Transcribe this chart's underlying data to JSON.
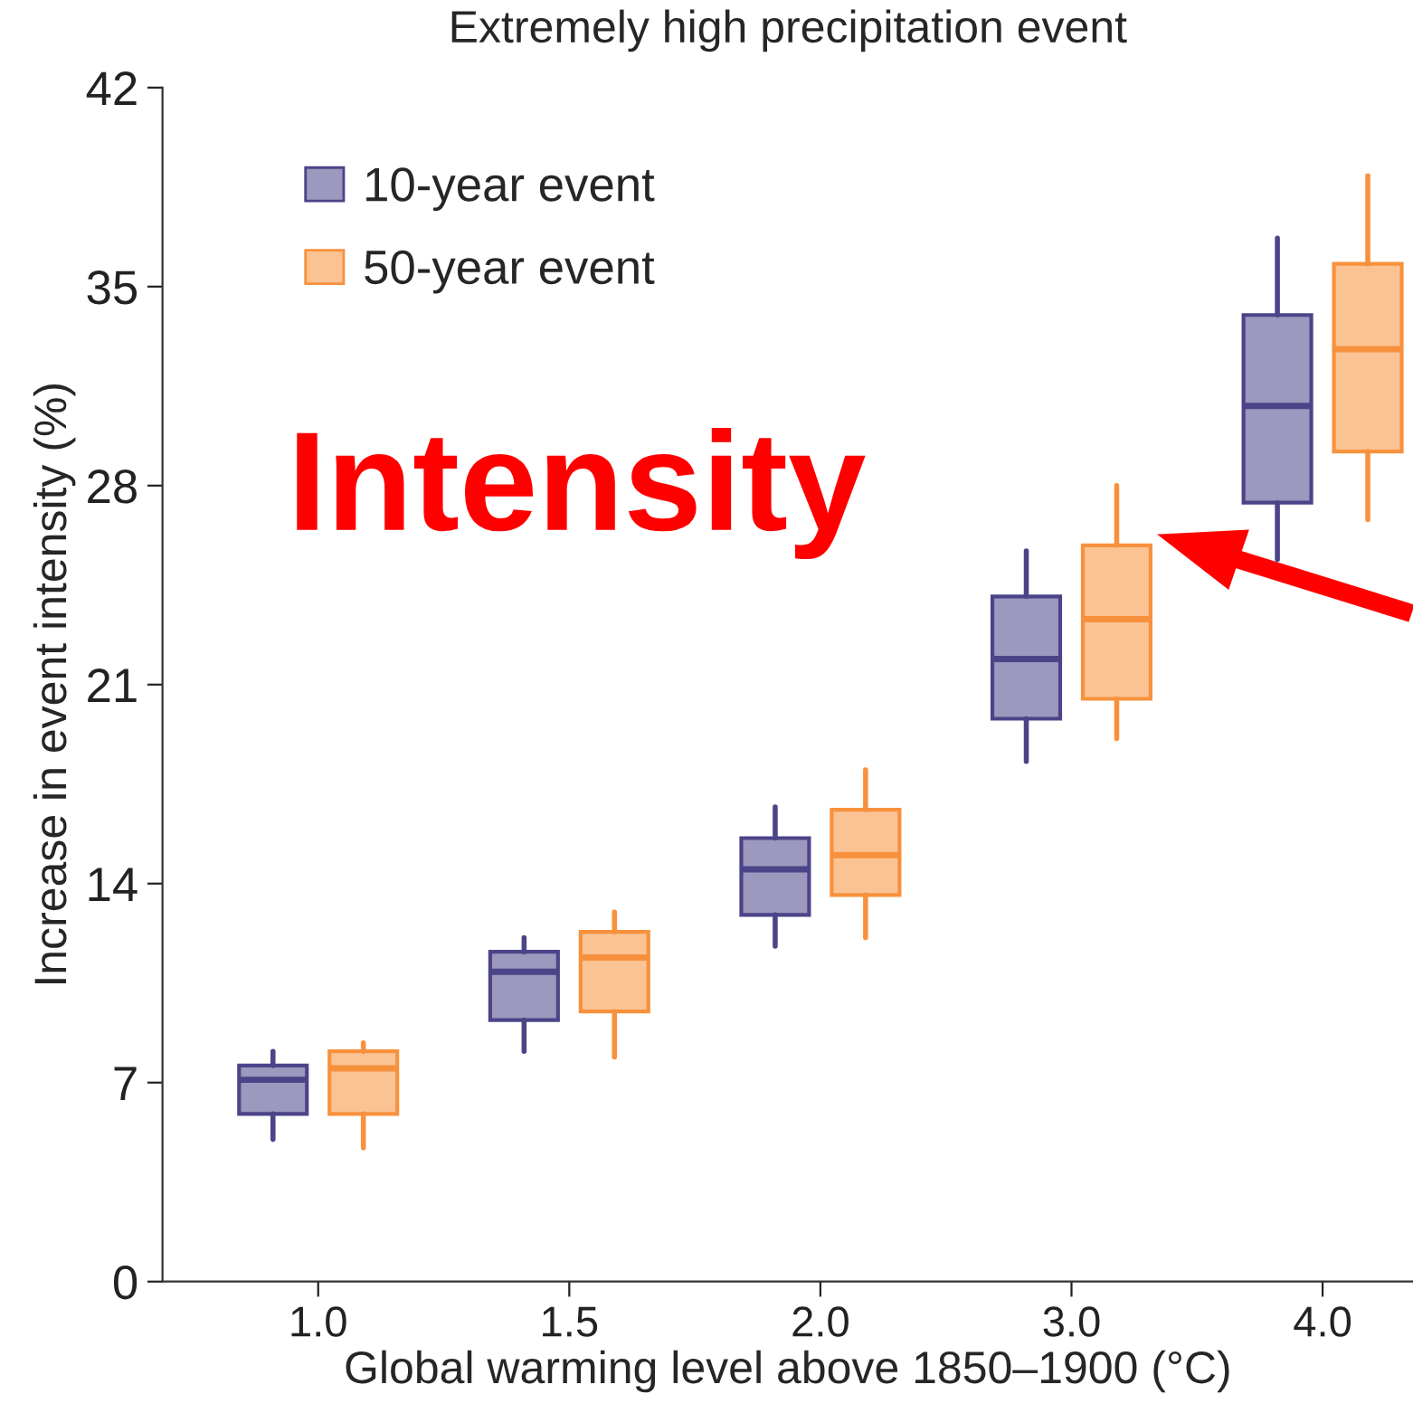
{
  "chart_data": {
    "type": "box",
    "title": "Extremely high precipitation event",
    "xlabel": "Global warming level above 1850–1900 (°C)",
    "ylabel": "Increase in event intensity (%)",
    "categories": [
      "1.0",
      "1.5",
      "2.0",
      "3.0",
      "4.0"
    ],
    "series": [
      {
        "name": "10-year event",
        "color": "#4b4488",
        "boxes": [
          {
            "low": 5.0,
            "q1": 5.9,
            "median": 7.1,
            "q3": 7.6,
            "high": 8.1
          },
          {
            "low": 8.1,
            "q1": 9.2,
            "median": 10.9,
            "q3": 11.6,
            "high": 12.1
          },
          {
            "low": 11.8,
            "q1": 12.9,
            "median": 14.5,
            "q3": 15.6,
            "high": 16.7
          },
          {
            "low": 18.3,
            "q1": 19.8,
            "median": 21.9,
            "q3": 24.1,
            "high": 25.7
          },
          {
            "low": 25.4,
            "q1": 27.4,
            "median": 30.8,
            "q3": 34.0,
            "high": 36.7
          }
        ]
      },
      {
        "name": "50-year event",
        "color": "#f7913d",
        "boxes": [
          {
            "low": 4.7,
            "q1": 5.9,
            "median": 7.5,
            "q3": 8.1,
            "high": 8.4
          },
          {
            "low": 7.9,
            "q1": 9.5,
            "median": 11.4,
            "q3": 12.3,
            "high": 13.0
          },
          {
            "low": 12.1,
            "q1": 13.6,
            "median": 15.0,
            "q3": 16.6,
            "high": 18.0
          },
          {
            "low": 19.1,
            "q1": 20.5,
            "median": 23.3,
            "q3": 25.9,
            "high": 28.0
          },
          {
            "low": 26.8,
            "q1": 29.2,
            "median": 32.8,
            "q3": 35.8,
            "high": 38.9
          }
        ]
      }
    ],
    "ylim": [
      0,
      42
    ],
    "yticks": [
      0,
      7,
      14,
      21,
      28,
      35,
      42
    ],
    "grid": false,
    "legend": "top left",
    "annotations": [
      "Intensity"
    ]
  }
}
